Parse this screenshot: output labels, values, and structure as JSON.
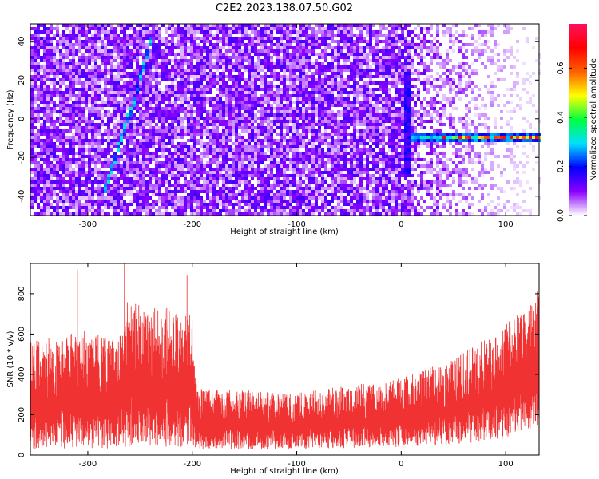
{
  "title": "C2E2.2023.138.07.50.G02",
  "chart_data": [
    {
      "type": "heatmap",
      "xlabel": "Height of straight line (km)",
      "ylabel": "Frequency (Hz)",
      "xlim": [
        -355,
        132
      ],
      "ylim": [
        -50,
        49
      ],
      "x_ticks": [
        -300,
        -200,
        -100,
        0,
        100
      ],
      "y_ticks": [
        -40,
        -20,
        0,
        20,
        40
      ],
      "colorbar": {
        "label": "Normalized spectral amplitude",
        "range": [
          0.0,
          0.78
        ],
        "ticks": [
          0.0,
          0.2,
          0.4,
          0.6
        ],
        "colors": [
          "#ffffff",
          "#8a00ff",
          "#0000ff",
          "#00e0ff",
          "#00ff40",
          "#ffff00",
          "#ff6000",
          "#ff0000",
          "#ff1060"
        ]
      },
      "features": {
        "horizontal_band": {
          "x_start": 10,
          "x_end": 132,
          "frequency": -10,
          "peak_amplitude": 0.75
        },
        "diagonal_trace": [
          [
            -285,
            -40
          ],
          [
            -268,
            -10
          ],
          [
            -255,
            10
          ],
          [
            -240,
            40
          ]
        ],
        "vertical_trace": {
          "x": 5,
          "freq_range": [
            -30,
            25
          ]
        }
      }
    },
    {
      "type": "line",
      "xlabel": "Height of straight line (km)",
      "ylabel": "SNR (10 * v/v)",
      "xlim": [
        -355,
        132
      ],
      "ylim": [
        0,
        950
      ],
      "x_ticks": [
        -300,
        -200,
        -100,
        0,
        100
      ],
      "y_ticks": [
        0,
        200,
        400,
        600,
        800
      ],
      "color": "#f03232",
      "envelope": {
        "x": [
          -355,
          -300,
          -270,
          -265,
          -200,
          -195,
          -100,
          0,
          50,
          100,
          132
        ],
        "upper": [
          560,
          620,
          560,
          780,
          700,
          330,
          310,
          380,
          480,
          650,
          790
        ],
        "lower": [
          30,
          30,
          30,
          40,
          40,
          30,
          30,
          40,
          50,
          80,
          150
        ]
      },
      "peaks": [
        [
          -265,
          950
        ],
        [
          -310,
          920
        ],
        [
          -205,
          890
        ],
        [
          130,
          810
        ]
      ]
    }
  ]
}
